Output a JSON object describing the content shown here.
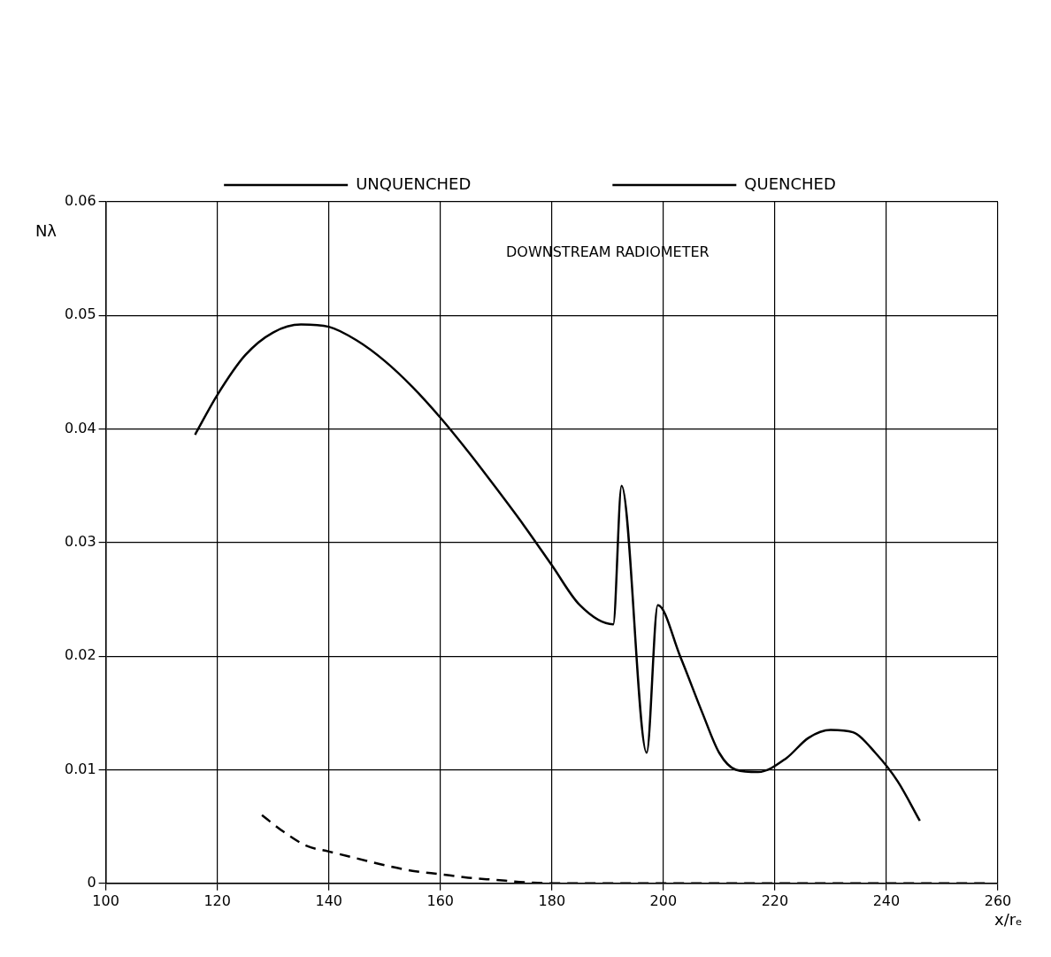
{
  "chart_data": {
    "type": "line",
    "x_label": "x/rₑ",
    "y_label": "Nλ",
    "annotation": {
      "text": "DOWNSTREAM RADIOMETER",
      "x": 190,
      "y": 0.0555
    },
    "xlim": [
      100,
      260
    ],
    "xticks": [
      100,
      120,
      140,
      160,
      180,
      200,
      220,
      240,
      260
    ],
    "ylim": [
      0,
      0.06
    ],
    "yticks": [
      0,
      0.01,
      0.02,
      0.03,
      0.04,
      0.05,
      0.06
    ],
    "grid": true,
    "legend": "top",
    "series": [
      {
        "name": "UNQUENCHED",
        "color": "#000000",
        "line_style": "solid",
        "x": [
          116,
          120,
          125,
          130,
          135,
          140,
          145,
          150,
          155,
          160,
          165,
          170,
          175,
          180,
          185,
          191,
          192.5,
          197,
          199,
          203,
          207,
          210,
          213,
          217,
          222,
          226,
          230,
          234,
          238,
          242,
          246
        ],
        "values": [
          0.0395,
          0.043,
          0.0465,
          0.0485,
          0.0492,
          0.049,
          0.0478,
          0.046,
          0.0437,
          0.041,
          0.038,
          0.0348,
          0.0315,
          0.028,
          0.0245,
          0.0228,
          0.035,
          0.0115,
          0.0245,
          0.02,
          0.015,
          0.0115,
          0.01,
          0.0098,
          0.011,
          0.0128,
          0.0135,
          0.0133,
          0.0115,
          0.009,
          0.0055
        ]
      },
      {
        "name": "QUENCHED",
        "color": "#000000",
        "line_style": "dashed",
        "x": [
          128,
          132,
          136,
          140,
          145,
          150,
          155,
          160,
          165,
          170,
          175,
          180,
          200,
          220,
          240,
          258
        ],
        "values": [
          0.006,
          0.0045,
          0.0033,
          0.0028,
          0.0022,
          0.0016,
          0.0011,
          0.0008,
          0.0005,
          0.0003,
          0.0001,
          0,
          0,
          0,
          0,
          0
        ]
      }
    ]
  }
}
